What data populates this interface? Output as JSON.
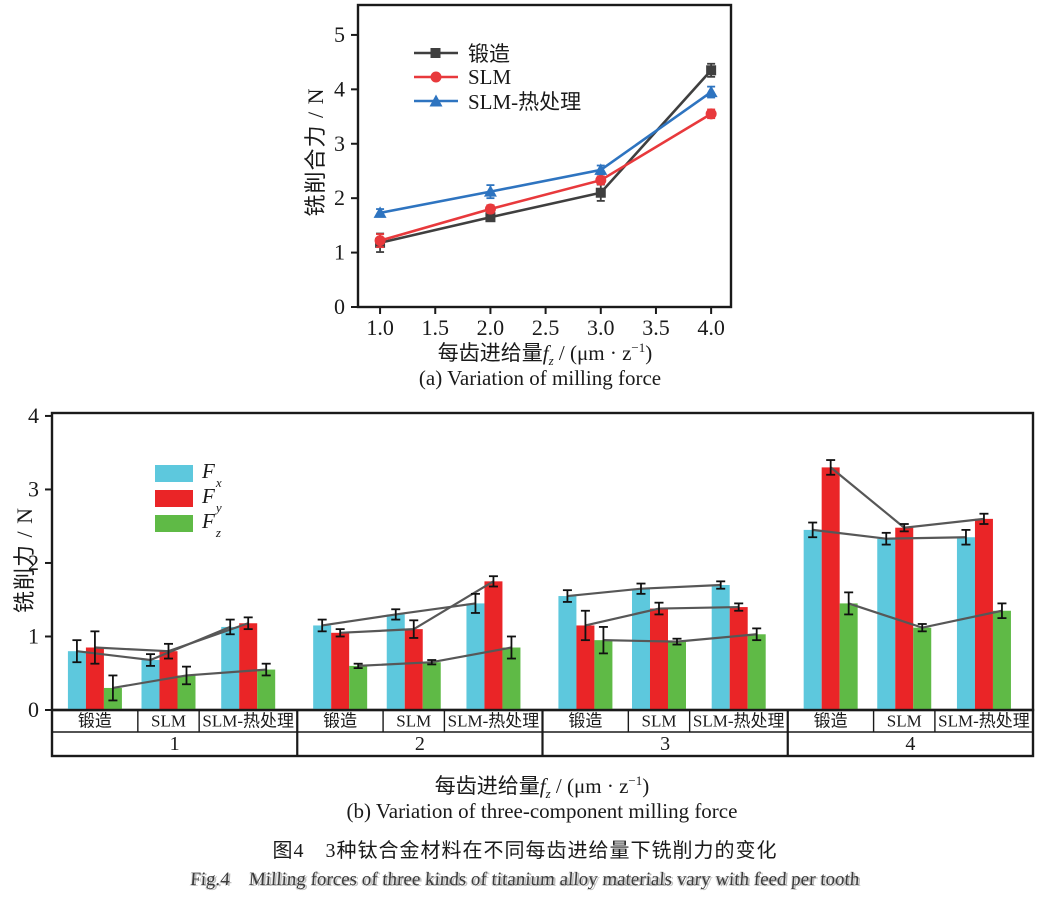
{
  "figure": {
    "caption_cn": "图4　3种钛合金材料在不同每齿进给量下铣削力的变化",
    "caption_en": "Fig.4　Milling forces of three kinds of titanium alloy materials vary with feed per tooth"
  },
  "axis_label": {
    "prefix": "每齿进给量",
    "var": "f",
    "var_sub": "z",
    "mid": " / (μm · z",
    "sup": "−1",
    "suffix": ")"
  },
  "top_chart": {
    "subcaption": "(a) Variation of milling force",
    "ylabel": "铣削合力 / N"
  },
  "bottom_chart": {
    "subcaption": "(b) Variation of three-component milling force",
    "ylabel": "铣削力 / N"
  },
  "colors": {
    "forged": "#3f3f3f",
    "slm": "#e8393c",
    "slm_ht": "#2e74c0",
    "fx": "#5dc8dd",
    "fy": "#ea2527",
    "fz": "#5fba46",
    "connector": "#575757",
    "axis": "#1a1a1a"
  },
  "chart_data": [
    {
      "type": "line",
      "title": "(a) Variation of milling force",
      "xlabel": "每齿进给量 fz / (μm · z⁻¹)",
      "ylabel": "铣削合力 / N",
      "x": [
        1.0,
        2.0,
        3.0,
        4.0
      ],
      "xlim": [
        0.8,
        4.18
      ],
      "ylim": [
        0,
        5.55
      ],
      "xticks": [
        1.0,
        1.5,
        2.0,
        2.5,
        3.0,
        3.5,
        4.0
      ],
      "xtick_labels": [
        "1.0",
        "1.5",
        "2.0",
        "2.5",
        "3.0",
        "3.5",
        "4.0"
      ],
      "yticks": [
        0,
        1,
        2,
        3,
        4,
        5
      ],
      "ytick_labels": [
        "0",
        "1",
        "2",
        "3",
        "4",
        "5"
      ],
      "grid": false,
      "legend_position": "upper left inside",
      "series": [
        {
          "name": "锻造",
          "marker": "square",
          "color": "#3f3f3f",
          "values": [
            1.18,
            1.65,
            2.1,
            4.35
          ],
          "errors": [
            0.17,
            0.07,
            0.15,
            0.12
          ]
        },
        {
          "name": "SLM",
          "marker": "circle",
          "color": "#e8393c",
          "values": [
            1.22,
            1.8,
            2.33,
            3.55
          ],
          "errors": [
            0.12,
            0.07,
            0.07,
            0.08
          ]
        },
        {
          "name": "SLM-热处理",
          "marker": "triangle",
          "color": "#2e74c0",
          "values": [
            1.73,
            2.12,
            2.52,
            3.95
          ],
          "errors": [
            0.07,
            0.12,
            0.08,
            0.1
          ]
        }
      ]
    },
    {
      "type": "bar",
      "title": "(b) Variation of three-component milling force",
      "xlabel": "每齿进给量 fz / (μm · z⁻¹)",
      "ylabel": "铣削力 / N",
      "ylim": [
        0,
        4.04
      ],
      "yticks": [
        0,
        1,
        2,
        3,
        4
      ],
      "ytick_labels": [
        "0",
        "1",
        "2",
        "3",
        "4"
      ],
      "grid": false,
      "legend_position": "upper left inside",
      "groups": [
        "1",
        "2",
        "3",
        "4"
      ],
      "materials": [
        "锻造",
        "SLM",
        "SLM-热处理"
      ],
      "connector_lines": true,
      "series": [
        {
          "name": "Fx",
          "label_main": "F",
          "label_sub": "x",
          "color": "#5dc8dd",
          "values": [
            [
              0.8,
              0.68,
              1.13
            ],
            [
              1.15,
              1.3,
              1.45
            ],
            [
              1.55,
              1.65,
              1.7
            ],
            [
              2.45,
              2.33,
              2.35
            ]
          ],
          "errors": [
            [
              0.15,
              0.08,
              0.1
            ],
            [
              0.08,
              0.07,
              0.13
            ],
            [
              0.08,
              0.07,
              0.05
            ],
            [
              0.1,
              0.08,
              0.1
            ]
          ]
        },
        {
          "name": "Fy",
          "label_main": "F",
          "label_sub": "y",
          "color": "#ea2527",
          "values": [
            [
              0.85,
              0.8,
              1.18
            ],
            [
              1.05,
              1.1,
              1.75
            ],
            [
              1.15,
              1.38,
              1.4
            ],
            [
              3.3,
              2.48,
              2.6
            ]
          ],
          "errors": [
            [
              0.22,
              0.1,
              0.08
            ],
            [
              0.05,
              0.12,
              0.07
            ],
            [
              0.2,
              0.08,
              0.05
            ],
            [
              0.1,
              0.05,
              0.07
            ]
          ]
        },
        {
          "name": "Fz",
          "label_main": "F",
          "label_sub": "z",
          "color": "#5fba46",
          "values": [
            [
              0.3,
              0.47,
              0.55
            ],
            [
              0.6,
              0.65,
              0.85
            ],
            [
              0.95,
              0.93,
              1.03
            ],
            [
              1.45,
              1.12,
              1.35
            ]
          ],
          "errors": [
            [
              0.17,
              0.12,
              0.08
            ],
            [
              0.03,
              0.03,
              0.15
            ],
            [
              0.18,
              0.04,
              0.08
            ],
            [
              0.15,
              0.05,
              0.1
            ]
          ]
        }
      ]
    }
  ]
}
